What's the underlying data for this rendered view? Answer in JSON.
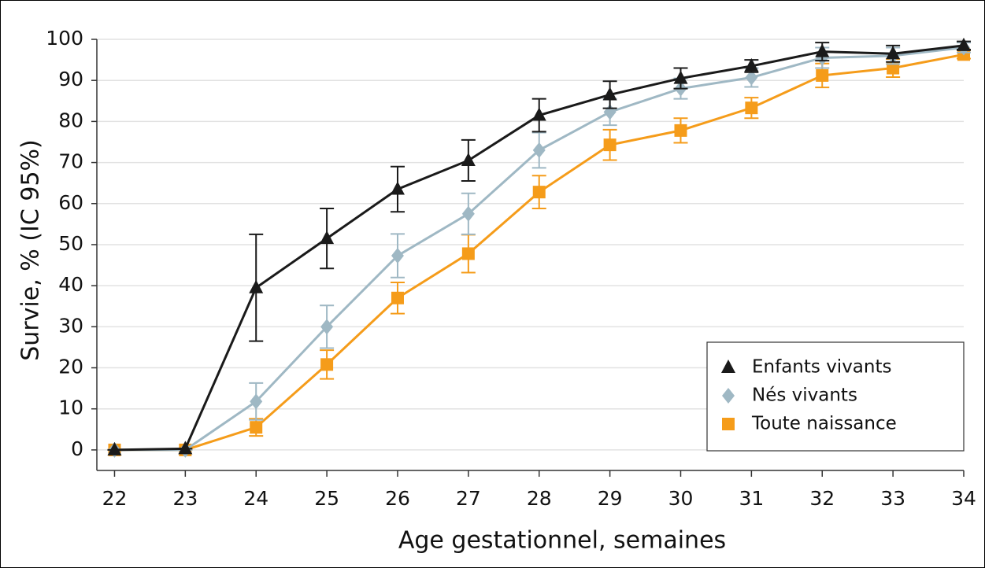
{
  "chart_data": {
    "type": "line",
    "xlabel": "Age gestationnel, semaines",
    "ylabel": "Survie, % (IC 95%)",
    "x": [
      22,
      23,
      24,
      25,
      26,
      27,
      28,
      29,
      30,
      31,
      32,
      33,
      34
    ],
    "xlim": [
      21.75,
      34
    ],
    "xticks": [
      22,
      23,
      24,
      25,
      26,
      27,
      28,
      29,
      30,
      31,
      32,
      33,
      34
    ],
    "ylim": [
      -5,
      100
    ],
    "yticks": [
      0,
      10,
      20,
      30,
      40,
      50,
      60,
      70,
      80,
      90,
      100
    ],
    "grid": true,
    "legend": "lower right",
    "series": [
      {
        "name": "Enfants vivants",
        "color": "#1a1a1a",
        "marker": "triangle",
        "values": [
          0,
          0.3,
          39.5,
          51.5,
          63.5,
          70.5,
          81.5,
          86.5,
          90.5,
          93.5,
          97,
          96.5,
          98.5
        ],
        "errors": [
          0,
          0,
          13,
          7.3,
          5.5,
          5,
          4,
          3.3,
          2.5,
          1.5,
          2.2,
          2,
          1
        ]
      },
      {
        "name": "Nés vivants",
        "color": "#9fb8c4",
        "marker": "diamond",
        "values": [
          0,
          0,
          11.8,
          30,
          47.3,
          57.5,
          73,
          82.3,
          88,
          90.7,
          95.5,
          96,
          98
        ],
        "errors": [
          0,
          0,
          4.5,
          5.2,
          5.3,
          5,
          4.3,
          3.2,
          2.5,
          2.3,
          2.5,
          2,
          1.2
        ]
      },
      {
        "name": "Toute naissance",
        "color": "#f59c1a",
        "marker": "square",
        "values": [
          0,
          0,
          5.5,
          20.8,
          37,
          47.8,
          62.8,
          74.3,
          77.8,
          83.3,
          91.2,
          93,
          96.3
        ],
        "errors": [
          0,
          0,
          2.1,
          3.5,
          3.8,
          4.6,
          4,
          3.7,
          3,
          2.5,
          2.9,
          2.2,
          1
        ]
      }
    ]
  }
}
